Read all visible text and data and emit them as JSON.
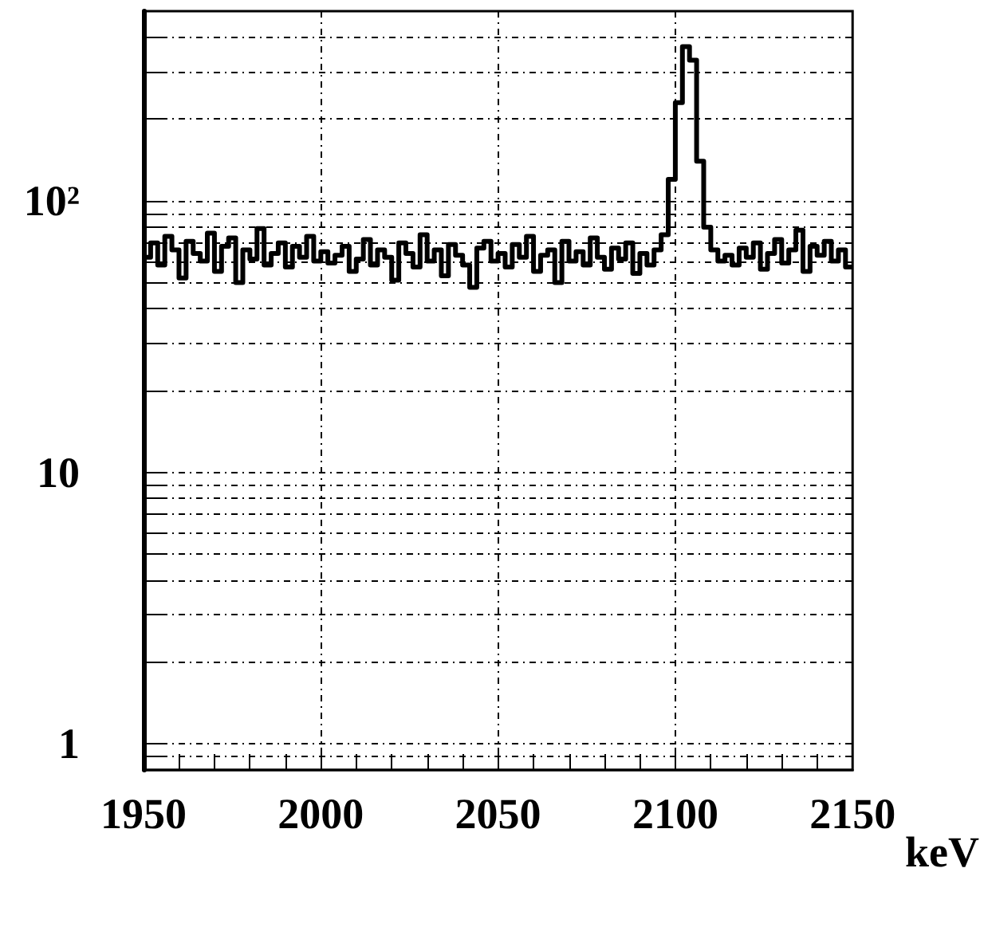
{
  "chart_data": {
    "type": "histogram",
    "xlabel": "keV",
    "log": "y",
    "grid": true,
    "color": "#000000",
    "bins": [
      1950,
      1952,
      1954,
      1956,
      1958,
      1960,
      1962,
      1964,
      1966,
      1968,
      1970,
      1972,
      1974,
      1976,
      1978,
      1980,
      1982,
      1984,
      1986,
      1988,
      1990,
      1992,
      1994,
      1996,
      1998,
      2000,
      2002,
      2004,
      2006,
      2008,
      2010,
      2012,
      2014,
      2016,
      2018,
      2020,
      2022,
      2024,
      2026,
      2028,
      2030,
      2032,
      2034,
      2036,
      2038,
      2040,
      2042,
      2044,
      2046,
      2048,
      2050,
      2052,
      2054,
      2056,
      2058,
      2060,
      2062,
      2064,
      2066,
      2068,
      2070,
      2072,
      2074,
      2076,
      2078,
      2080,
      2082,
      2084,
      2086,
      2088,
      2090,
      2092,
      2094,
      2096,
      2098,
      2100,
      2102,
      2104,
      2106,
      2108,
      2110,
      2112,
      2114,
      2116,
      2118,
      2120,
      2122,
      2124,
      2126,
      2128,
      2130,
      2132,
      2134,
      2136,
      2138,
      2140,
      2142,
      2144,
      2146,
      2148,
      2150
    ],
    "values": [
      62,
      70,
      58,
      74,
      66,
      52,
      71,
      64,
      60,
      76,
      55,
      68,
      73,
      50,
      66,
      61,
      79,
      58,
      64,
      70,
      57,
      68,
      62,
      74,
      60,
      65,
      59,
      63,
      68,
      55,
      61,
      72,
      58,
      66,
      62,
      51,
      70,
      64,
      57,
      75,
      60,
      66,
      53,
      69,
      63,
      58,
      48,
      67,
      71,
      60,
      64,
      57,
      69,
      62,
      74,
      55,
      63,
      66,
      50,
      71,
      60,
      65,
      58,
      73,
      62,
      56,
      67,
      61,
      70,
      54,
      64,
      58,
      66,
      75,
      120,
      230,
      370,
      330,
      140,
      80,
      66,
      60,
      63,
      58,
      67,
      62,
      70,
      56,
      64,
      72,
      59,
      66,
      78,
      55,
      68,
      63,
      71,
      60,
      66,
      57
    ],
    "xlim": [
      1950,
      2150
    ],
    "xticks": [
      1950,
      {
        "value": 1960,
        "label": null
      },
      {
        "value": 1970,
        "label": null
      },
      {
        "value": 1980,
        "label": null
      },
      {
        "value": 1990,
        "label": null
      },
      2000,
      {
        "value": 2010,
        "label": null
      },
      {
        "value": 2020,
        "label": null
      },
      {
        "value": 2030,
        "label": null
      },
      {
        "value": 2040,
        "label": null
      },
      2050,
      {
        "value": 2060,
        "label": null
      },
      {
        "value": 2070,
        "label": null
      },
      {
        "value": 2080,
        "label": null
      },
      {
        "value": 2090,
        "label": null
      },
      2100,
      {
        "value": 2110,
        "label": null
      },
      {
        "value": 2120,
        "label": null
      },
      {
        "value": 2130,
        "label": null
      },
      {
        "value": 2140,
        "label": null
      },
      2150
    ],
    "ylim": [
      0.8,
      500
    ],
    "yticks": [
      {
        "value": 0.9,
        "label": null
      },
      1,
      {
        "value": 2,
        "label": null
      },
      {
        "value": 3,
        "label": null
      },
      {
        "value": 4,
        "label": null
      },
      {
        "value": 5,
        "label": null
      },
      {
        "value": 6,
        "label": null
      },
      {
        "value": 7,
        "label": null
      },
      {
        "value": 8,
        "label": null
      },
      {
        "value": 9,
        "label": null
      },
      10,
      {
        "value": 20,
        "label": null
      },
      {
        "value": 30,
        "label": null
      },
      {
        "value": 40,
        "label": null
      },
      {
        "value": 50,
        "label": null
      },
      {
        "value": 60,
        "label": null
      },
      {
        "value": 70,
        "label": null
      },
      {
        "value": 80,
        "label": null
      },
      {
        "value": 90,
        "label": null
      },
      {
        "value": 100,
        "label": "10²"
      },
      {
        "value": 200,
        "label": null
      },
      {
        "value": 300,
        "label": null
      },
      {
        "value": 400,
        "label": null
      }
    ]
  }
}
